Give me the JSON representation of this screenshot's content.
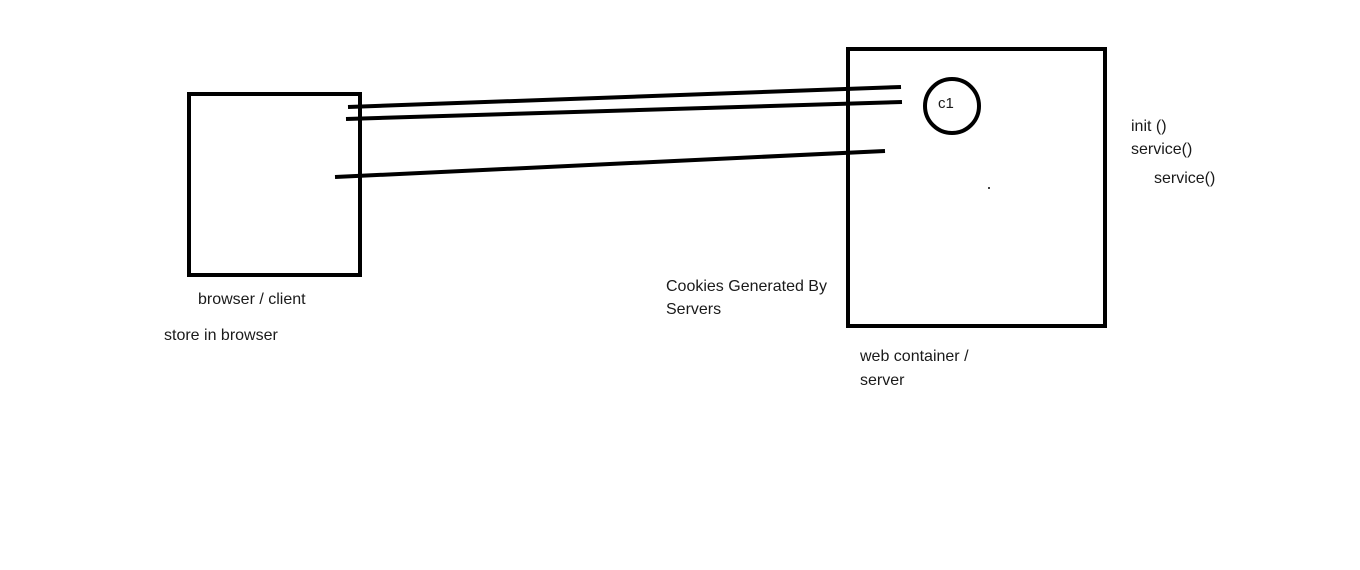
{
  "browser": {
    "label": "browser / client",
    "note": "store in browser"
  },
  "server": {
    "label_line1": "web container  /",
    "label_line2": "server",
    "cookie_caption_line1": "Cookies Generated By",
    "cookie_caption_line2": "Servers"
  },
  "cookie": {
    "label": "c1"
  },
  "lifecycle": {
    "init": "init ()",
    "service_1": "service()",
    "service_2": "service()"
  },
  "colors": {
    "stroke": "#000000",
    "background": "#ffffff"
  }
}
